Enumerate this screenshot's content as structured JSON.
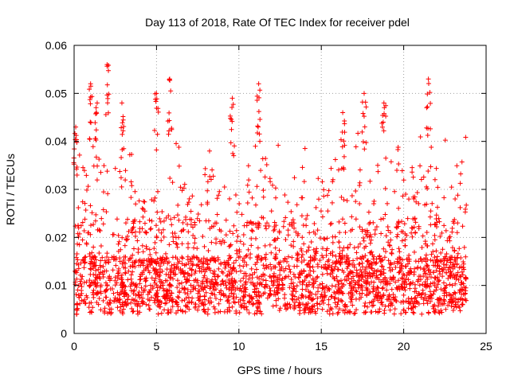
{
  "chart_data": {
    "type": "scatter",
    "title": "Day 113 of 2018, Rate Of TEC Index for receiver pdel",
    "xlabel": "GPS time / hours",
    "ylabel": "ROTI / TECUs",
    "xlim": [
      0,
      25
    ],
    "ylim": [
      0,
      0.06
    ],
    "x_ticks": [
      0,
      5,
      10,
      15,
      20,
      25
    ],
    "y_ticks": [
      0,
      0.01,
      0.02,
      0.03,
      0.04,
      0.05,
      0.06
    ],
    "x_tick_labels": [
      "0",
      "5",
      "10",
      "15",
      "20",
      "25"
    ],
    "y_tick_labels": [
      "0",
      "0.01",
      "0.02",
      "0.03",
      "0.04",
      "0.05",
      "0.06"
    ],
    "grid": true,
    "marker": "plus",
    "color": "#ff0000",
    "series": [
      {
        "name": "ROTI",
        "description": "dense scatter of ROTI samples from ~0.05 to ~23.8 hours; bulk 0.003-0.02 TECU/s, peaks up to ~0.056",
        "x_range": [
          0.05,
          23.8
        ],
        "y_range": [
          0.002,
          0.057
        ],
        "peaks": [
          {
            "x": 0.1,
            "y": 0.043
          },
          {
            "x": 1.0,
            "y": 0.052
          },
          {
            "x": 1.4,
            "y": 0.048
          },
          {
            "x": 2.0,
            "y": 0.056
          },
          {
            "x": 2.9,
            "y": 0.048
          },
          {
            "x": 5.0,
            "y": 0.05
          },
          {
            "x": 5.8,
            "y": 0.053
          },
          {
            "x": 9.6,
            "y": 0.049
          },
          {
            "x": 11.2,
            "y": 0.052
          },
          {
            "x": 16.3,
            "y": 0.046
          },
          {
            "x": 17.6,
            "y": 0.05
          },
          {
            "x": 18.8,
            "y": 0.048
          },
          {
            "x": 21.5,
            "y": 0.053
          }
        ]
      }
    ]
  }
}
